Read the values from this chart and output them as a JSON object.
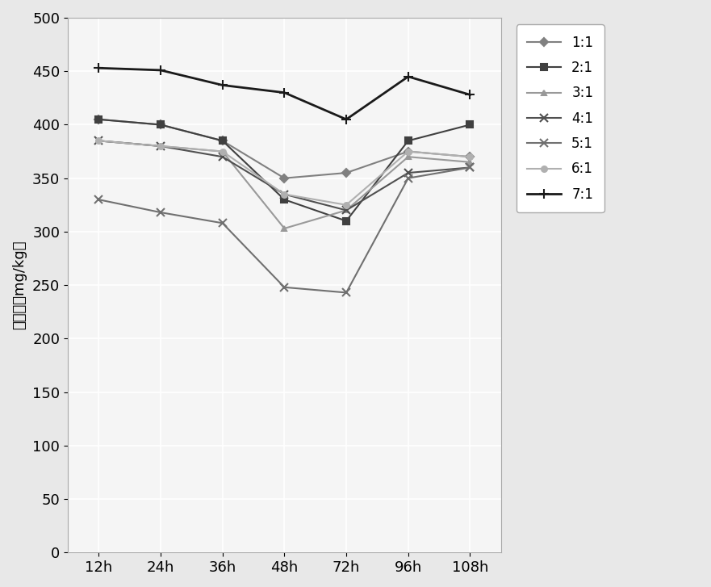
{
  "x_labels": [
    "12h",
    "24h",
    "36h",
    "48h",
    "72h",
    "96h",
    "108h"
  ],
  "x_values": [
    0,
    1,
    2,
    3,
    4,
    5,
    6
  ],
  "series": [
    {
      "label": "1:1",
      "color": "#808080",
      "marker": "D",
      "markersize": 5,
      "linewidth": 1.5,
      "values": [
        405,
        400,
        385,
        350,
        355,
        375,
        370
      ]
    },
    {
      "label": "2:1",
      "color": "#404040",
      "marker": "s",
      "markersize": 6,
      "linewidth": 1.5,
      "values": [
        405,
        400,
        385,
        330,
        310,
        385,
        400
      ]
    },
    {
      "label": "3:1",
      "color": "#999999",
      "marker": "^",
      "markersize": 5,
      "linewidth": 1.5,
      "values": [
        385,
        380,
        375,
        303,
        320,
        370,
        365
      ]
    },
    {
      "label": "4:1",
      "color": "#505050",
      "marker": "x",
      "markersize": 7,
      "linewidth": 1.5,
      "values": [
        385,
        380,
        370,
        335,
        320,
        355,
        360
      ]
    },
    {
      "label": "5:1",
      "color": "#707070",
      "marker": "x",
      "markersize": 7,
      "linewidth": 1.5,
      "values": [
        330,
        318,
        308,
        248,
        243,
        350,
        360
      ]
    },
    {
      "label": "6:1",
      "color": "#b0b0b0",
      "marker": "o",
      "markersize": 5,
      "linewidth": 1.5,
      "values": [
        385,
        380,
        375,
        335,
        325,
        375,
        370
      ]
    },
    {
      "label": "7:1",
      "color": "#1a1a1a",
      "marker": "+",
      "markersize": 9,
      "linewidth": 2.0,
      "values": [
        453,
        451,
        437,
        430,
        405,
        445,
        428
      ]
    }
  ],
  "ylabel": "酸溶态（mg/kg）",
  "ylim": [
    0,
    500
  ],
  "yticks": [
    0,
    50,
    100,
    150,
    200,
    250,
    300,
    350,
    400,
    450,
    500
  ],
  "bg_color": "#e8e8e8",
  "plot_bg_color": "#f5f5f5",
  "grid_color": "#ffffff",
  "tick_fontsize": 13,
  "ylabel_fontsize": 13,
  "legend_fontsize": 12
}
